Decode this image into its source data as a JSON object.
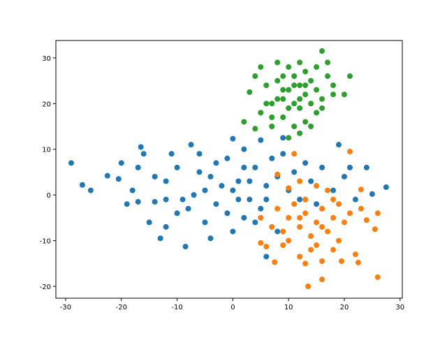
{
  "chart_data": {
    "type": "scatter",
    "xlim": [
      -31.75,
      30.4
    ],
    "ylim": [
      -22.6,
      33.8
    ],
    "xticks": [
      -30,
      -20,
      -10,
      0,
      10,
      20,
      30
    ],
    "yticks": [
      -20,
      -10,
      0,
      10,
      20,
      30
    ],
    "series": [
      {
        "color": "#1f77b4",
        "x": [
          -29,
          -27,
          -25.5,
          -22.5,
          -20.5,
          -20,
          -19,
          -18,
          -17,
          -16.5,
          -16,
          -15,
          -14,
          -13,
          -12,
          -12,
          -11,
          -10,
          -8.5,
          -8,
          -7.5,
          -6,
          -5,
          -4,
          -3,
          -2,
          -1,
          0,
          0,
          1,
          2,
          2,
          3,
          4,
          5,
          5,
          6,
          6,
          7,
          8,
          9,
          9,
          10,
          11,
          12,
          13,
          14,
          15,
          16,
          18,
          19,
          20,
          21,
          22,
          24,
          25,
          27.5,
          -14,
          -9,
          -5,
          -3,
          1,
          3,
          -7,
          -1,
          4,
          8,
          -17,
          -10,
          -6,
          2,
          -12,
          0,
          6,
          -4
        ],
        "y": [
          7,
          2.2,
          1,
          4.2,
          3.5,
          7,
          -2,
          1,
          -1.5,
          10.5,
          9,
          -6,
          -1.5,
          -9.5,
          -7,
          3,
          9,
          6,
          -11.3,
          -3,
          11,
          5,
          -6,
          -9.5,
          7,
          2,
          -4,
          12.3,
          -8,
          3,
          10,
          -5,
          -1,
          6,
          -3,
          12,
          -13.5,
          2,
          8,
          -8,
          9,
          12.5,
          1,
          5,
          -1,
          7,
          3,
          -2,
          6,
          1,
          11,
          4,
          6,
          -1,
          6,
          0.2,
          1.7,
          4,
          -1,
          1,
          -2,
          -1,
          3,
          0,
          8,
          -6,
          4,
          6,
          -4,
          9,
          6,
          -1,
          1,
          -1,
          4
        ]
      },
      {
        "color": "#ff7f0e",
        "x": [
          13.5,
          16,
          26,
          7.5,
          13,
          16,
          19.5,
          22.5,
          5,
          6,
          9,
          12,
          15,
          18,
          22,
          5,
          7,
          8,
          9,
          10,
          11,
          12,
          13,
          14,
          15,
          16,
          17,
          18,
          19,
          20,
          21,
          23,
          24,
          25.5,
          26,
          8,
          10,
          11,
          12,
          13,
          15,
          17,
          19,
          21,
          23,
          14,
          10,
          16,
          12,
          18
        ],
        "y": [
          -20,
          -18.5,
          -18,
          -14.7,
          -15,
          -14.5,
          -14.5,
          -14.8,
          -10.5,
          -11.3,
          -11,
          -13.5,
          -11,
          -12,
          -13,
          -5,
          -7,
          -3,
          -8,
          -5,
          -2,
          -7,
          -4,
          -9,
          -6,
          -3,
          -8,
          -5,
          -10,
          -6,
          -4,
          -3,
          -5.5,
          -7.5,
          -4,
          4.5,
          1.5,
          9,
          3,
          -1,
          2,
          1,
          -2,
          9.5,
          1.2,
          -12,
          -10,
          -7,
          -5,
          -1
        ]
      },
      {
        "color": "#2ca02c",
        "x": [
          4,
          5,
          3,
          4,
          5,
          6,
          7,
          7,
          8,
          8,
          9,
          9,
          10,
          10,
          10,
          11,
          11,
          11,
          12,
          12,
          12,
          13,
          13,
          13,
          14,
          14,
          15,
          15,
          15,
          16,
          16,
          17,
          18,
          18,
          20,
          21,
          2,
          6,
          7,
          9,
          12,
          14,
          16,
          17,
          10,
          11,
          12,
          9,
          8,
          13
        ],
        "y": [
          14.5,
          18,
          22.5,
          26,
          28,
          24,
          15,
          20,
          25,
          29,
          17,
          21,
          12.5,
          28,
          23,
          15,
          20,
          26,
          19,
          24,
          29,
          16,
          22,
          27,
          20,
          25,
          18,
          23,
          28,
          31.5,
          21,
          26,
          24,
          22,
          22,
          26,
          16,
          20,
          17,
          26,
          13.5,
          15,
          19,
          29,
          19,
          24,
          21,
          23,
          21,
          24
        ]
      }
    ]
  }
}
